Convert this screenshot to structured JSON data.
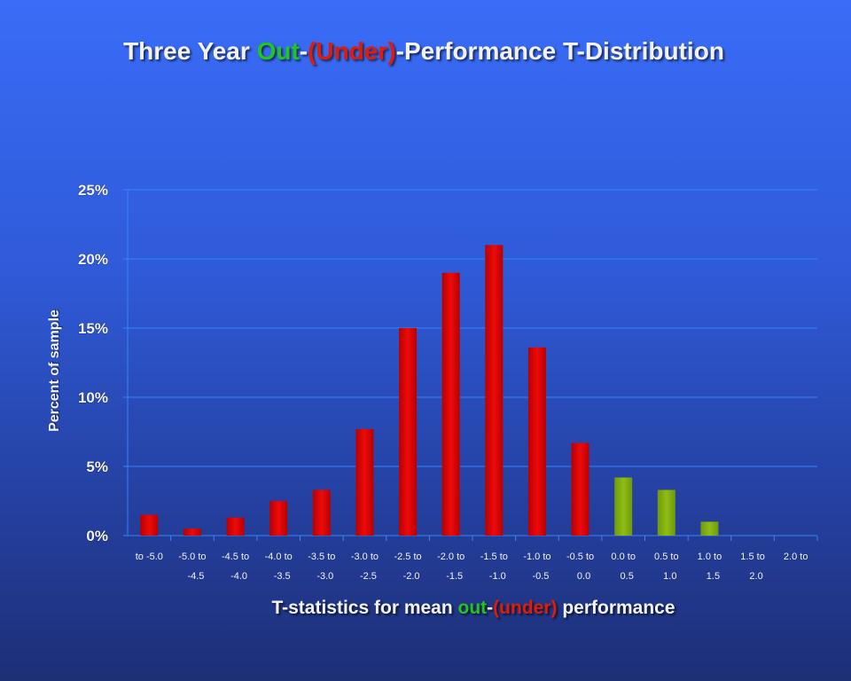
{
  "title": {
    "part1": "Three Year ",
    "out": "Out",
    "dash1": "-",
    "under": "(Under)",
    "part2": "-Performance T-Distribution"
  },
  "xlabel": {
    "part1": "T-statistics for mean ",
    "out": "out",
    "dash1": "-",
    "under": "(under)",
    "part2": " performance"
  },
  "colors": {
    "out": "#22c41e",
    "under": "#e01b08",
    "bar_under": "#ee0a0a",
    "bar_out": "#8fbd14",
    "grid": "#2f86ff",
    "text": "#f2f2f2"
  },
  "chart_data": {
    "type": "bar",
    "title": "Three Year Out-(Under)-Performance T-Distribution",
    "xlabel": "T-statistics for mean out-(under) performance",
    "ylabel": "Percent of sample",
    "ylim": [
      0,
      25
    ],
    "yticks": [
      "0%",
      "5%",
      "10%",
      "15%",
      "20%",
      "25%"
    ],
    "ytick_values": [
      0,
      5,
      10,
      15,
      20,
      25
    ],
    "grid": true,
    "categories": [
      [
        "to -5.0",
        ""
      ],
      [
        "-5.0 to",
        "-4.5"
      ],
      [
        "-4.5 to",
        "-4.0"
      ],
      [
        "-4.0 to",
        "-3.5"
      ],
      [
        "-3.5 to",
        "-3.0"
      ],
      [
        "-3.0 to",
        "-2.5"
      ],
      [
        "-2.5 to",
        "-2.0"
      ],
      [
        "-2.0 to",
        "-1.5"
      ],
      [
        "-1.5 to",
        "-1.0"
      ],
      [
        "-1.0 to",
        "-0.5"
      ],
      [
        "-0.5 to",
        "0.0"
      ],
      [
        "0.0 to",
        "0.5"
      ],
      [
        "0.5 to",
        "1.0"
      ],
      [
        "1.0 to",
        "1.5"
      ],
      [
        "1.5 to",
        "2.0"
      ],
      [
        "2.0 to",
        ""
      ]
    ],
    "values": [
      1.5,
      0.5,
      1.3,
      2.5,
      3.3,
      7.7,
      15.0,
      19.0,
      21.0,
      13.6,
      6.7,
      4.2,
      3.3,
      1.0,
      0,
      0
    ],
    "bar_groups": [
      "under",
      "under",
      "under",
      "under",
      "under",
      "under",
      "under",
      "under",
      "under",
      "under",
      "under",
      "out",
      "out",
      "out",
      "out",
      "out"
    ]
  }
}
